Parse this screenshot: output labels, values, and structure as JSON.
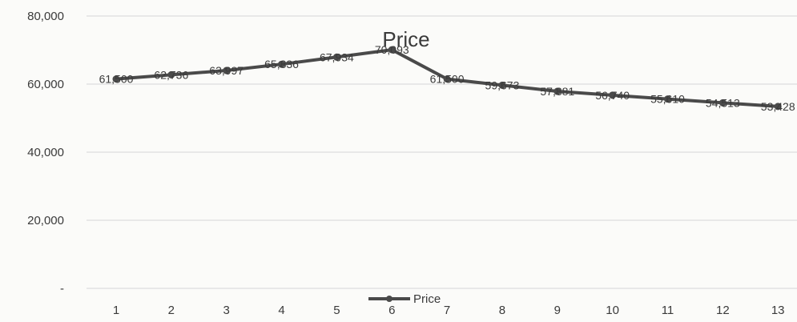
{
  "chart_data": {
    "type": "line",
    "title": "Price",
    "x": [
      1,
      2,
      3,
      4,
      5,
      6,
      7,
      8,
      9,
      10,
      11,
      12,
      13
    ],
    "series": [
      {
        "name": "Price",
        "values": [
          61500,
          62736,
          63997,
          65836,
          67934,
          70093,
          61500,
          59673,
          57881,
          56740,
          55610,
          54513,
          53428
        ],
        "labels": [
          "61,500",
          "62,736",
          "63,997",
          "65,836",
          "67,934",
          "70,093",
          "61,500",
          "59,673",
          "57,881",
          "56,740",
          "55,610",
          "54,513",
          "53,428"
        ]
      }
    ],
    "y_ticks": [
      {
        "value": 0,
        "label": "-"
      },
      {
        "value": 20000,
        "label": "20,000"
      },
      {
        "value": 40000,
        "label": "40,000"
      },
      {
        "value": 60000,
        "label": "60,000"
      },
      {
        "value": 80000,
        "label": "80,000"
      }
    ],
    "ylim": [
      0,
      80000
    ],
    "xlabel": "",
    "ylabel": "",
    "grid": true,
    "legend_position": "bottom",
    "line_color": "#4a4a4a"
  }
}
